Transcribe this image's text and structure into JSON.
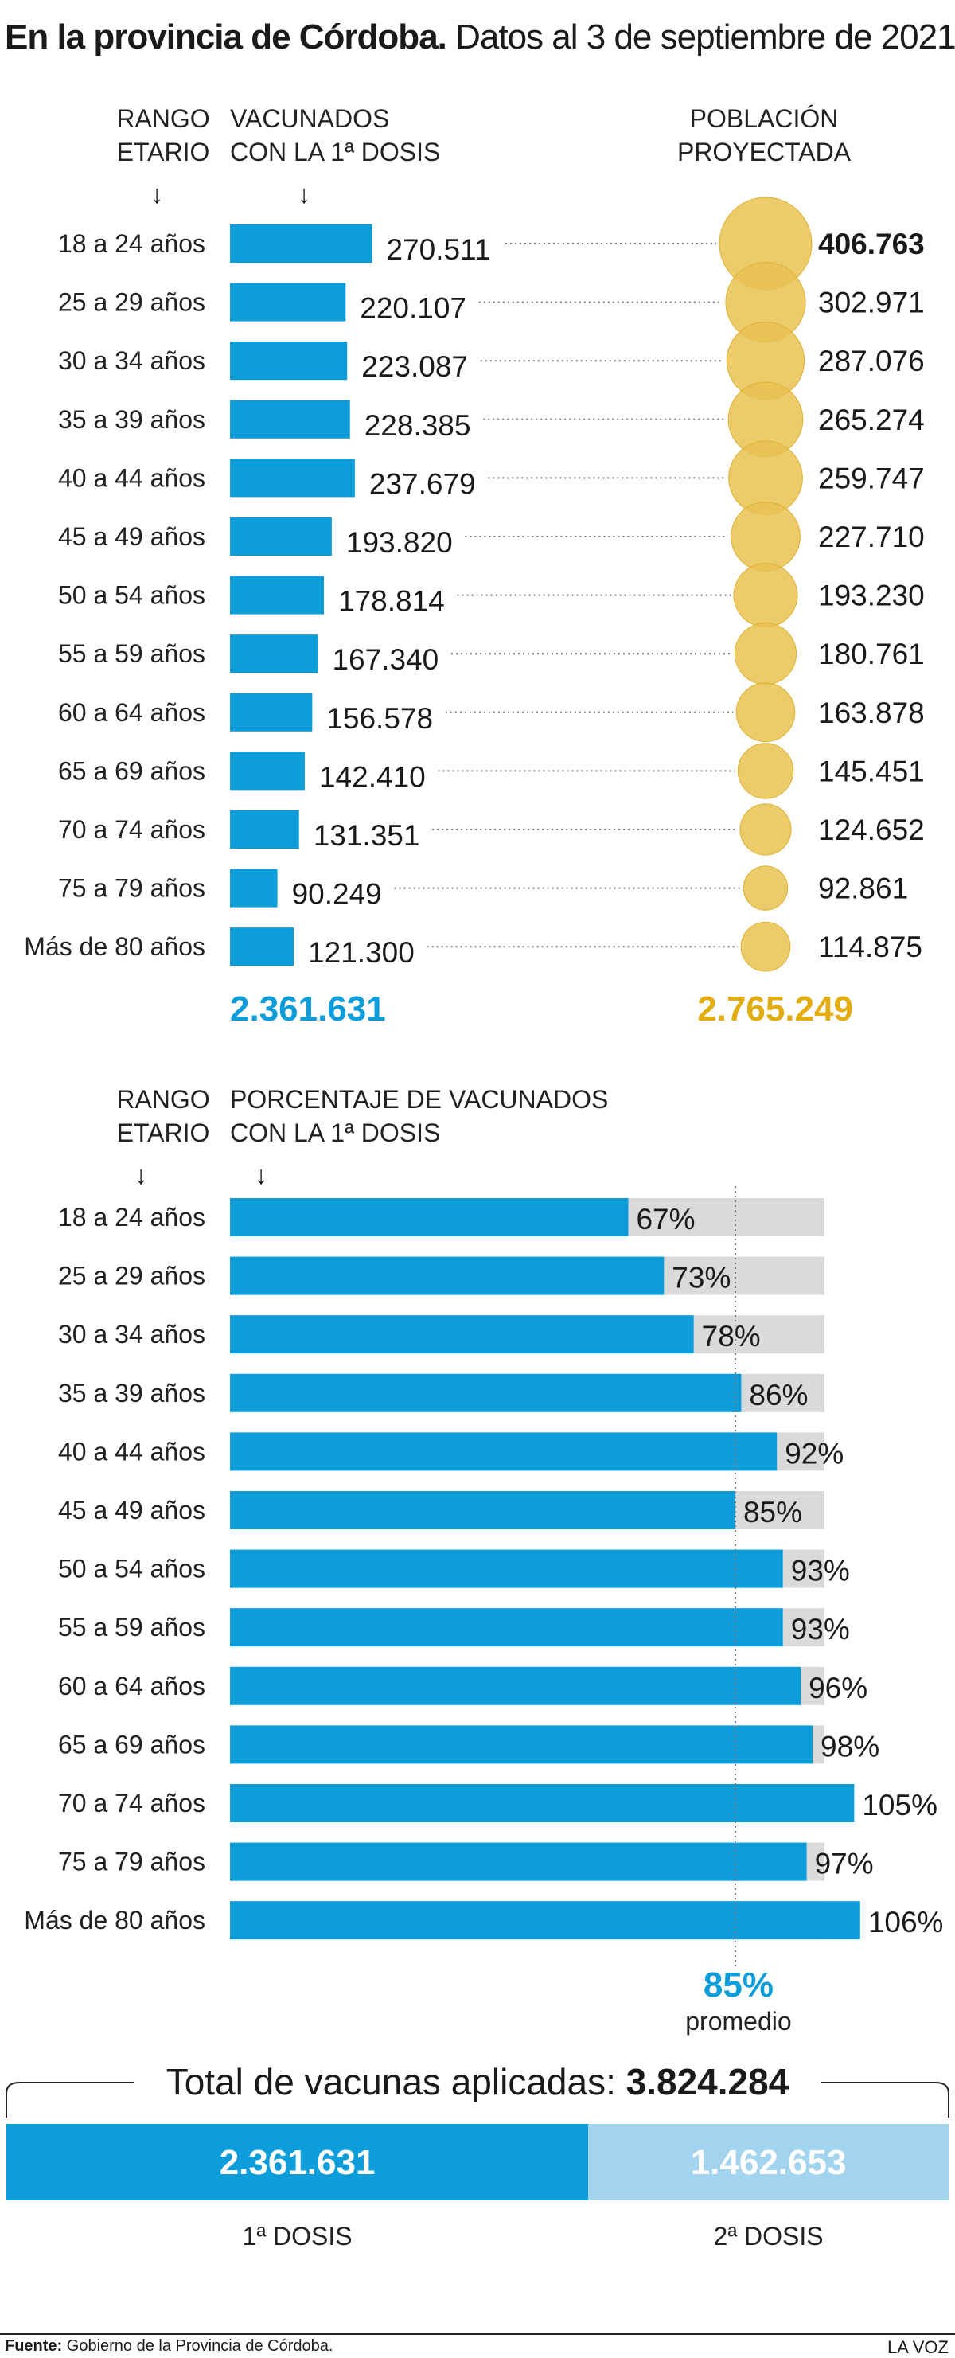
{
  "title": {
    "bold": "En la provincia de Córdoba.",
    "rest": " Datos al 3 de septiembre de 2021."
  },
  "colors": {
    "blue": "#0d9ddb",
    "gold": "#e9c251",
    "gold_text": "#e3ad12",
    "gray": "#d9dadc",
    "light_blue": "#a3d4ef"
  },
  "chart_data": [
    {
      "type": "bar",
      "header_left": [
        "RANGO",
        "ETARIO"
      ],
      "header_mid": [
        "VACUNADOS",
        "CON LA 1ª DOSIS"
      ],
      "header_right": [
        "POBLACIÓN",
        "PROYECTADA"
      ],
      "categories": [
        "18 a 24 años",
        "25 a 29 años",
        "30 a 34 años",
        "35 a 39 años",
        "40 a 44 años",
        "45 a 49 años",
        "50 a 54 años",
        "55 a 59 años",
        "60 a 64 años",
        "65 a 69 años",
        "70 a 74 años",
        "75 a 79  años",
        "Más de 80 años"
      ],
      "values": [
        270511,
        220107,
        223087,
        228385,
        237679,
        193820,
        178814,
        167340,
        156578,
        142410,
        131351,
        90249,
        121300
      ],
      "value_labels": [
        "270.511",
        "220.107",
        "223.087",
        "228.385",
        "237.679",
        "193.820",
        "178.814",
        "167.340",
        "156.578",
        "142.410",
        "131.351",
        "90.249",
        "121.300"
      ],
      "population": [
        406763,
        302971,
        287076,
        265274,
        259747,
        227710,
        193230,
        180761,
        163878,
        145451,
        124652,
        92861,
        114875
      ],
      "population_labels": [
        "406.763",
        "302.971",
        "287.076",
        "265.274",
        "259.747",
        "227.710",
        "193.230",
        "180.761",
        "163.878",
        "145.451",
        "124.652",
        "92.861",
        "114.875"
      ],
      "total_vaccinated": "2.361.631",
      "total_population": "2.765.249"
    },
    {
      "type": "bar",
      "header_left": [
        "RANGO",
        "ETARIO"
      ],
      "header_mid": [
        "PORCENTAJE DE VACUNADOS",
        "CON LA 1ª DOSIS"
      ],
      "categories": [
        "18 a 24 años",
        "25 a 29 años",
        "30 a 34 años",
        "35 a 39 años",
        "40 a 44 años",
        "45 a 49 años",
        "50 a 54 años",
        "55 a 59 años",
        "60 a 64 años",
        "65 a 69 años",
        "70 a 74 años",
        "75 a 79  años",
        "Más de 80 años"
      ],
      "values": [
        67,
        73,
        78,
        86,
        92,
        85,
        93,
        93,
        96,
        98,
        105,
        97,
        106
      ],
      "value_labels": [
        "67%",
        "73%",
        "78%",
        "86%",
        "92%",
        "85%",
        "93%",
        "93%",
        "96%",
        "98%",
        "105%",
        "97%",
        "106%"
      ],
      "average": 85,
      "average_label": "85%",
      "average_caption": "promedio"
    }
  ],
  "totals": {
    "label": "Total de vacunas aplicadas:",
    "value": "3.824.284",
    "dose1_value": "2.361.631",
    "dose2_value": "1.462.653",
    "dose1_label": "1ª DOSIS",
    "dose2_label": "2ª DOSIS",
    "dose1": 2361631,
    "dose2": 1462653
  },
  "footer": {
    "source_label": "Fuente:",
    "source": " Gobierno de la Provincia de Córdoba.",
    "brand": "LA VOZ"
  }
}
